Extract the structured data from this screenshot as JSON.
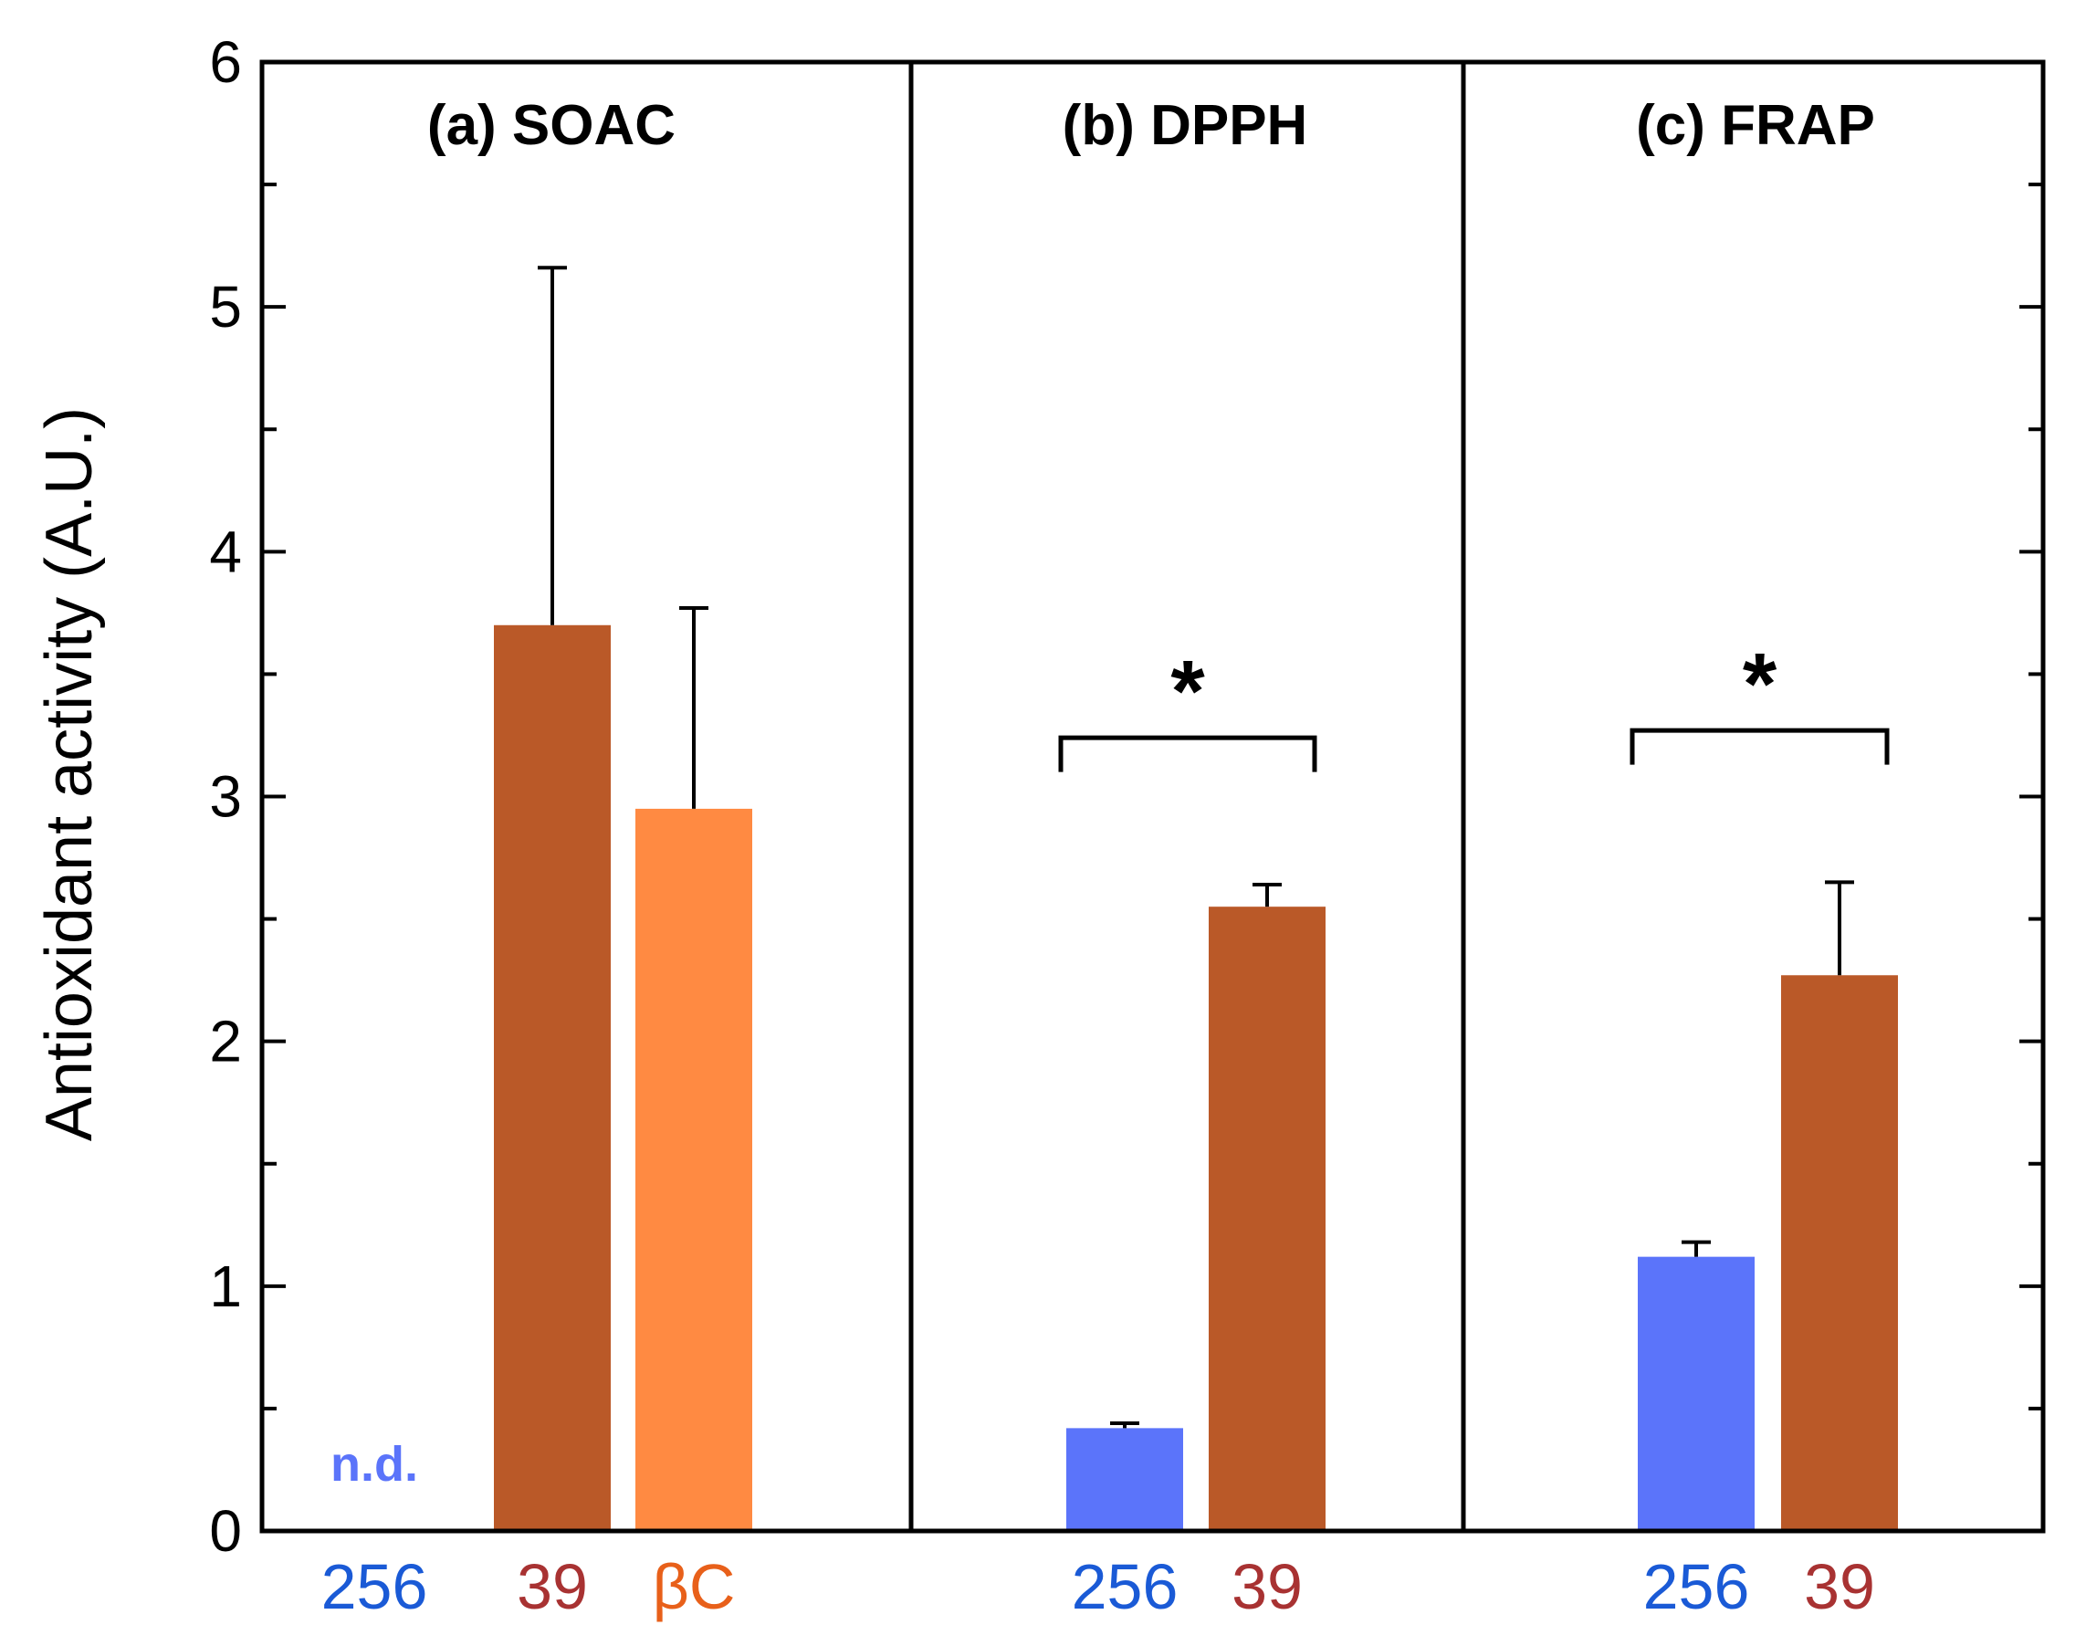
{
  "chart_data": {
    "type": "bar",
    "ylabel": "Antioxidant activity (A.U.)",
    "ylim": [
      0,
      6
    ],
    "yticks": [
      0,
      1,
      2,
      3,
      4,
      5,
      6
    ],
    "yminor_step": 0.5,
    "colors": {
      "256": "#5b74fa",
      "39": "#ba5928",
      "bC": "#ff8a42"
    },
    "label_colors": {
      "256": "#1a5ad6",
      "39": "#a83232",
      "bC": "#e8601a"
    },
    "panels": [
      {
        "title": "(a) SOAC",
        "bars": [
          {
            "label": "256",
            "value": null,
            "error": null,
            "note": "n.d."
          },
          {
            "label": "39",
            "value": 3.7,
            "error": 1.46
          },
          {
            "label": "βC",
            "value": 2.95,
            "error": 0.82
          }
        ],
        "significance": null
      },
      {
        "title": "(b) DPPH",
        "bars": [
          {
            "label": "256",
            "value": 0.42,
            "error": 0.02
          },
          {
            "label": "39",
            "value": 2.55,
            "error": 0.09
          }
        ],
        "significance": {
          "text": "*",
          "level": 3.1
        }
      },
      {
        "title": "(c) FRAP",
        "bars": [
          {
            "label": "256",
            "value": 1.12,
            "error": 0.06
          },
          {
            "label": "39",
            "value": 2.27,
            "error": 0.38
          }
        ],
        "significance": {
          "text": "*",
          "level": 3.13
        }
      }
    ]
  }
}
